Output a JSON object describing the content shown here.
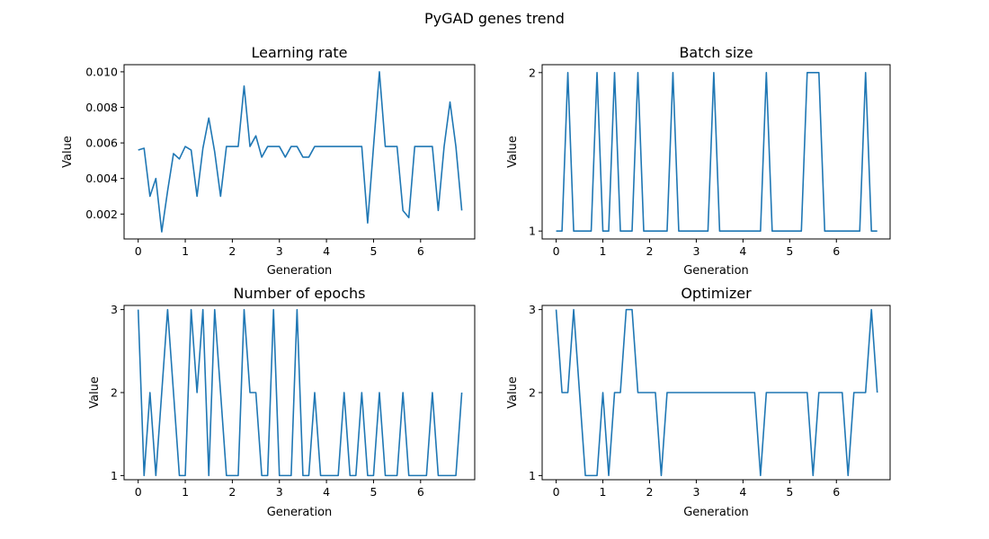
{
  "figure": {
    "title": "PyGAD genes trend"
  },
  "chart_data": [
    {
      "type": "line",
      "title": "Learning rate",
      "xlabel": "Generation",
      "ylabel": "Value",
      "xlim": [
        -0.3,
        7.15
      ],
      "ylim": [
        0.0006,
        0.0104
      ],
      "xticks": [
        0,
        1,
        2,
        3,
        4,
        5,
        6
      ],
      "xtick_labels": [
        "0",
        "1",
        "2",
        "3",
        "4",
        "5",
        "6"
      ],
      "yticks": [
        0.002,
        0.004,
        0.006,
        0.008,
        0.01
      ],
      "ytick_labels": [
        "0.002",
        "0.004",
        "0.006",
        "0.008",
        "0.010"
      ],
      "color": "#1f77b4",
      "grid": false,
      "x_step": 0.125,
      "series": [
        {
          "values": [
            0.0056,
            0.0057,
            0.003,
            0.004,
            0.001,
            0.0033,
            0.0054,
            0.0051,
            0.0058,
            0.0056,
            0.003,
            0.0057,
            0.0074,
            0.0055,
            0.003,
            0.0058,
            0.0058,
            0.0058,
            0.0092,
            0.0058,
            0.0064,
            0.0052,
            0.0058,
            0.0058,
            0.0058,
            0.0052,
            0.0058,
            0.0058,
            0.0052,
            0.0052,
            0.0058,
            0.0058,
            0.0058,
            0.0058,
            0.0058,
            0.0058,
            0.0058,
            0.0058,
            0.0058,
            0.0015,
            0.0058,
            0.01,
            0.0058,
            0.0058,
            0.0058,
            0.0022,
            0.0018,
            0.0058,
            0.0058,
            0.0058,
            0.0058,
            0.0022,
            0.0058,
            0.0083,
            0.0058,
            0.0022
          ]
        }
      ]
    },
    {
      "type": "line",
      "title": "Batch size",
      "xlabel": "Generation",
      "ylabel": "Value",
      "xlim": [
        -0.3,
        7.15
      ],
      "ylim": [
        0.95,
        2.05
      ],
      "xticks": [
        0,
        1,
        2,
        3,
        4,
        5,
        6
      ],
      "xtick_labels": [
        "0",
        "1",
        "2",
        "3",
        "4",
        "5",
        "6"
      ],
      "yticks": [
        1,
        2
      ],
      "ytick_labels": [
        "1",
        "2"
      ],
      "color": "#1f77b4",
      "grid": false,
      "x_step": 0.125,
      "series": [
        {
          "values": [
            1,
            1,
            2,
            1,
            1,
            1,
            1,
            2,
            1,
            1,
            2,
            1,
            1,
            1,
            2,
            1,
            1,
            1,
            1,
            1,
            2,
            1,
            1,
            1,
            1,
            1,
            1,
            2,
            1,
            1,
            1,
            1,
            1,
            1,
            1,
            1,
            2,
            1,
            1,
            1,
            1,
            1,
            1,
            2,
            2,
            2,
            1,
            1,
            1,
            1,
            1,
            1,
            1,
            2,
            1,
            1
          ]
        }
      ]
    },
    {
      "type": "line",
      "title": "Number of epochs",
      "xlabel": "Generation",
      "ylabel": "Value",
      "xlim": [
        -0.3,
        7.15
      ],
      "ylim": [
        0.95,
        3.05
      ],
      "xticks": [
        0,
        1,
        2,
        3,
        4,
        5,
        6
      ],
      "xtick_labels": [
        "0",
        "1",
        "2",
        "3",
        "4",
        "5",
        "6"
      ],
      "yticks": [
        1,
        2,
        3
      ],
      "ytick_labels": [
        "1",
        "2",
        "3"
      ],
      "color": "#1f77b4",
      "grid": false,
      "x_step": 0.125,
      "series": [
        {
          "values": [
            3,
            1,
            2,
            1,
            2,
            3,
            2,
            1,
            1,
            3,
            2,
            3,
            1,
            3,
            2,
            1,
            1,
            1,
            3,
            2,
            2,
            1,
            1,
            3,
            1,
            1,
            1,
            3,
            1,
            1,
            2,
            1,
            1,
            1,
            1,
            2,
            1,
            1,
            2,
            1,
            1,
            2,
            1,
            1,
            1,
            2,
            1,
            1,
            1,
            1,
            2,
            1,
            1,
            1,
            1,
            2
          ]
        }
      ]
    },
    {
      "type": "line",
      "title": "Optimizer",
      "xlabel": "Generation",
      "ylabel": "Value",
      "xlim": [
        -0.3,
        7.15
      ],
      "ylim": [
        0.95,
        3.05
      ],
      "xticks": [
        0,
        1,
        2,
        3,
        4,
        5,
        6
      ],
      "xtick_labels": [
        "0",
        "1",
        "2",
        "3",
        "4",
        "5",
        "6"
      ],
      "yticks": [
        1,
        2,
        3
      ],
      "ytick_labels": [
        "1",
        "2",
        "3"
      ],
      "color": "#1f77b4",
      "grid": false,
      "x_step": 0.125,
      "series": [
        {
          "values": [
            3,
            2,
            2,
            3,
            2,
            1,
            1,
            1,
            2,
            1,
            2,
            2,
            3,
            3,
            2,
            2,
            2,
            2,
            1,
            2,
            2,
            2,
            2,
            2,
            2,
            2,
            2,
            2,
            2,
            2,
            2,
            2,
            2,
            2,
            2,
            1,
            2,
            2,
            2,
            2,
            2,
            2,
            2,
            2,
            1,
            2,
            2,
            2,
            2,
            2,
            1,
            2,
            2,
            2,
            3,
            2
          ]
        }
      ]
    }
  ]
}
